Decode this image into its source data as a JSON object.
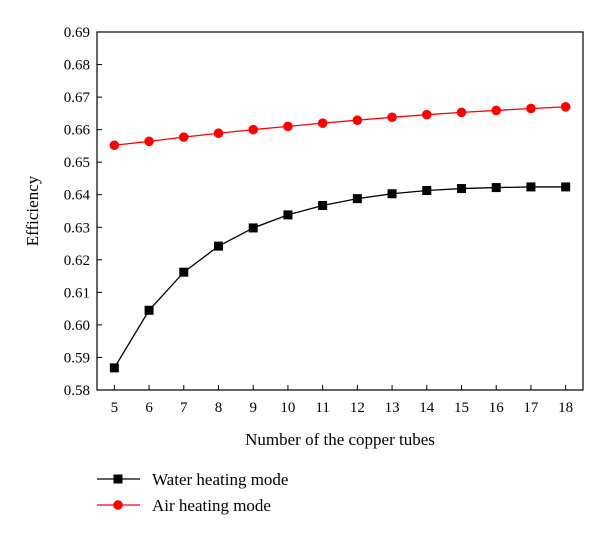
{
  "chart_data": {
    "type": "line",
    "title": "",
    "xlabel": "Number of the copper tubes",
    "ylabel": "Efficiency",
    "x": [
      5,
      6,
      7,
      8,
      9,
      10,
      11,
      12,
      13,
      14,
      15,
      16,
      17,
      18
    ],
    "xlim": [
      4.5,
      18.5
    ],
    "ylim": [
      0.58,
      0.69
    ],
    "yticks": [
      "0.58",
      "0.59",
      "0.60",
      "0.61",
      "0.62",
      "0.63",
      "0.64",
      "0.65",
      "0.66",
      "0.67",
      "0.68",
      "0.69"
    ],
    "grid": false,
    "legend_position": "bottom-left",
    "series": [
      {
        "name": "Water heating mode",
        "color": "#000000",
        "marker": "square",
        "values": [
          0.5868,
          0.6045,
          0.6162,
          0.6242,
          0.6298,
          0.6338,
          0.6367,
          0.6388,
          0.6403,
          0.6413,
          0.6419,
          0.6422,
          0.6424,
          0.6424
        ]
      },
      {
        "name": "Air heating mode",
        "color": "#ff0000",
        "marker": "circle",
        "values": [
          0.6552,
          0.6564,
          0.6577,
          0.6589,
          0.66,
          0.661,
          0.662,
          0.6629,
          0.6638,
          0.6646,
          0.6653,
          0.6659,
          0.6665,
          0.667
        ]
      }
    ]
  }
}
